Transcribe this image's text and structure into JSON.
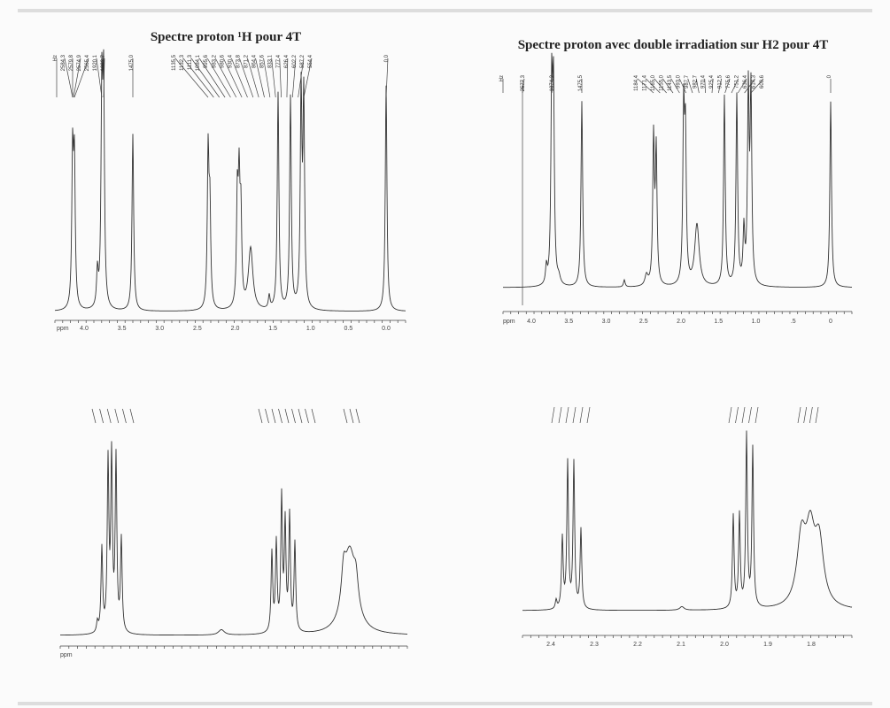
{
  "panels": [
    {
      "title": "Spectre proton ¹H pour 4T",
      "peak_labels": [
        "Hz",
        "2584.3",
        "2579.8",
        "2574.9",
        "2565.4",
        "1920.1",
        "1833.7",
        "1475.0",
        "1135.5",
        "1132.3",
        "1111.3",
        "1084.1",
        "995.6",
        "983.2",
        "980.6",
        "930.4",
        "873.8",
        "871.2",
        "864.4",
        "857.6",
        "833.1",
        "777.4",
        "626.4",
        "602.2",
        "587.2",
        "554.4",
        "0.0"
      ],
      "axis_unit": "ppm",
      "axis_ticks": [
        "4.0",
        "3.5",
        "3.0",
        "2.5",
        "2.0",
        "1.5",
        "1.0",
        "0.5",
        "0.0"
      ]
    },
    {
      "title": "Spectre proton avec double irradiation sur H2 pour 4T",
      "peak_labels": [
        "Hz",
        "2577.3",
        "1874.2",
        "1475.5",
        "1184.4",
        "1171.4",
        "1165.0",
        "1155.0",
        "1143.5",
        "993.0",
        "987.7",
        "982.7",
        "970.4",
        "925.4",
        "912.5",
        "775.6",
        "751.2",
        "636.4",
        "614.3",
        "609.6",
        "0"
      ],
      "axis_unit": "ppm",
      "axis_ticks": [
        "4.0",
        "3.5",
        "3.0",
        "2.5",
        "2.0",
        "1.5",
        "1.0",
        ".5",
        "0"
      ]
    },
    {
      "axis_unit": "ppm"
    },
    {
      "axis_ticks": [
        "2.4",
        "2.3",
        "2.2",
        "2.1",
        "2.0",
        "1.9",
        "1.8"
      ]
    }
  ]
}
